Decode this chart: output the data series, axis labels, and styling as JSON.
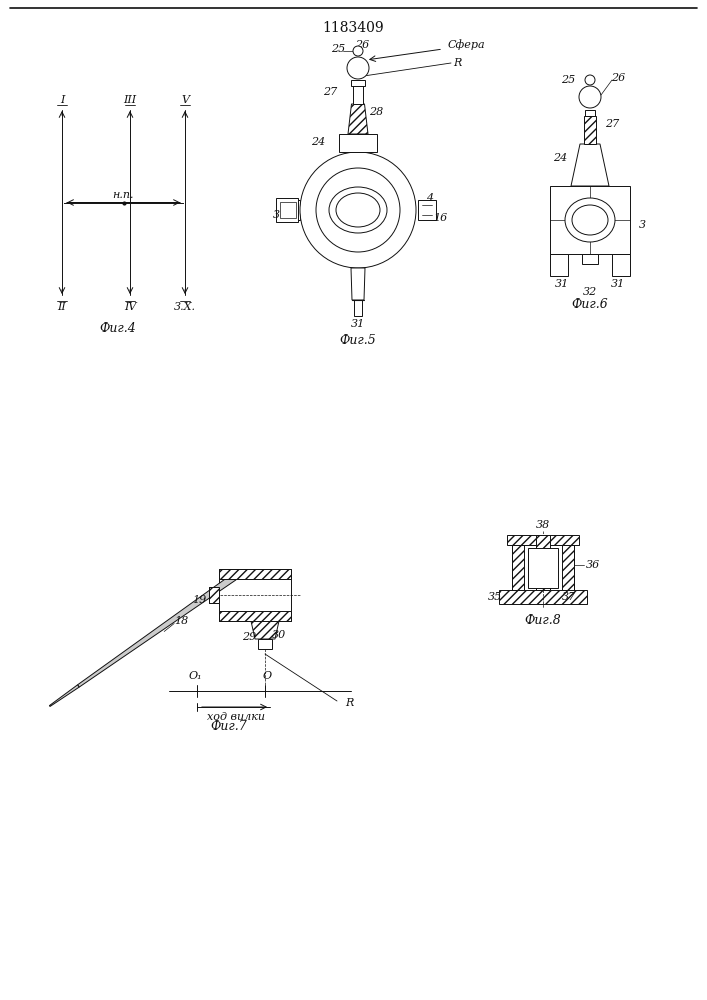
{
  "title": "1183409",
  "bg": "#ffffff",
  "lc": "#111111",
  "fig_width": 7.07,
  "fig_height": 10.0,
  "dpi": 100,
  "captions": {
    "fig4": "Фиг.4",
    "fig5": "Фиг.5",
    "fig6": "Фиг.6",
    "fig7": "Фиг.7",
    "fig8": "Фиг.8",
    "sfera": "Сфера",
    "np": "н.п.",
    "hod": "ход вилки"
  }
}
